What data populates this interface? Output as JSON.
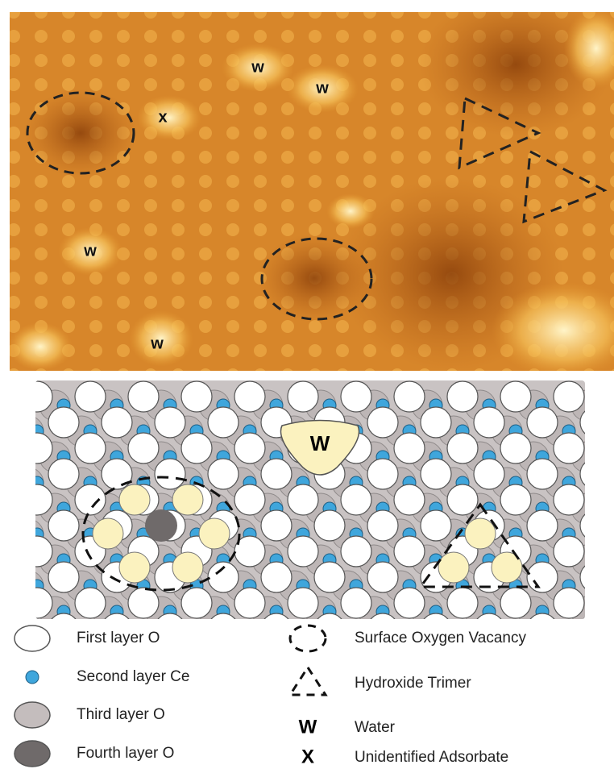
{
  "stm_image": {
    "labels": [
      "w",
      "w",
      "x",
      "w",
      "w"
    ]
  },
  "schematic": {
    "water_label": "W"
  },
  "legend": {
    "layers": [
      "First layer O",
      "Second layer Ce",
      "Third layer O",
      "Fourth layer O"
    ],
    "features": [
      {
        "label": "Surface Oxygen Vacancy"
      },
      {
        "label": "Hydroxide Trimer"
      },
      {
        "symbol": "W",
        "label": "Water"
      },
      {
        "symbol": "X",
        "label": "Unidentified Adsorbate"
      }
    ]
  }
}
